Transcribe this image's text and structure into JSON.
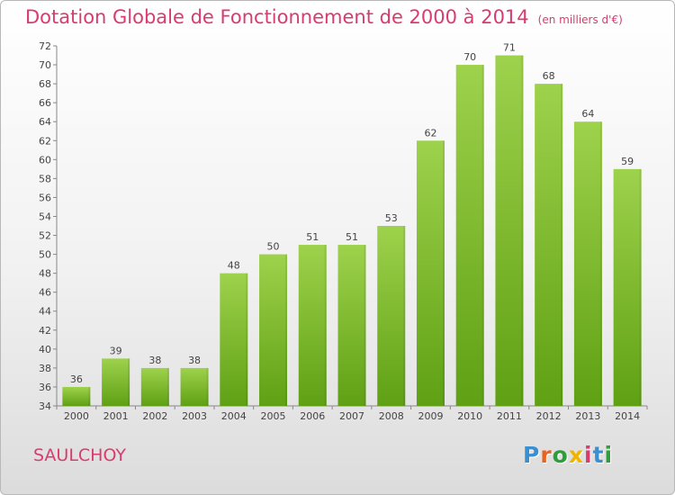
{
  "title": "Dotation Globale de Fonctionnement de 2000 à 2014",
  "unit_note": "(en milliers d'€)",
  "commune": "SAULCHOY",
  "logo": {
    "text": "Proxiti",
    "letter_colors": [
      "#3a8fd1",
      "#e8641e",
      "#2e9e3a",
      "#f0b400",
      "#d83c6e",
      "#3a8fd1",
      "#2e9e3a"
    ]
  },
  "colors": {
    "title": "#d83c6e",
    "bar_light": "#9ed24c",
    "bar_dark": "#5fa014",
    "axis": "#888888"
  },
  "chart_data": {
    "type": "bar",
    "title": "Dotation Globale de Fonctionnement de 2000 à 2014",
    "subtitle": "(en milliers d'€)",
    "categories": [
      "2000",
      "2001",
      "2002",
      "2003",
      "2004",
      "2005",
      "2006",
      "2007",
      "2008",
      "2009",
      "2010",
      "2011",
      "2012",
      "2013",
      "2014"
    ],
    "values": [
      36,
      39,
      38,
      38,
      48,
      50,
      51,
      51,
      53,
      62,
      70,
      71,
      68,
      64,
      59
    ],
    "ylim": [
      34,
      72
    ],
    "yticks": [
      34,
      36,
      38,
      40,
      42,
      44,
      46,
      48,
      50,
      52,
      54,
      56,
      58,
      60,
      62,
      64,
      66,
      68,
      70,
      72
    ],
    "xlabel": "",
    "ylabel": "",
    "grid": false,
    "data_labels": true
  }
}
